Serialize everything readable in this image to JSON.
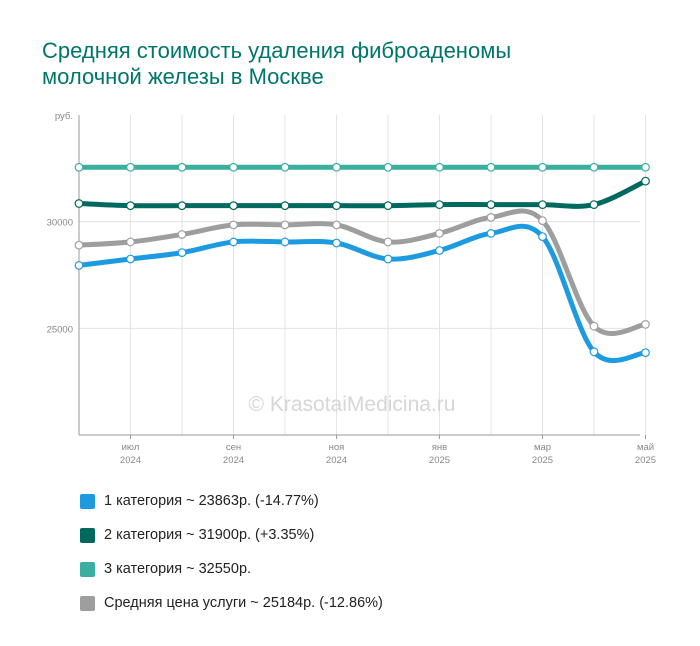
{
  "title": [
    "Средняя стоимость удаления фиброаденомы",
    "молочной железы в Москве"
  ],
  "watermark": "© KrasotaiMedicina.ru",
  "chart_data": {
    "type": "line",
    "ylabel": "руб.",
    "ylim": [
      20000,
      35000
    ],
    "yticks": [
      "30000",
      "25000"
    ],
    "ytick_values": [
      30000,
      25000
    ],
    "x_count": 12,
    "xticks": [
      {
        "i": 1,
        "month": "июл",
        "year": "2024"
      },
      {
        "i": 3,
        "month": "сен",
        "year": "2024"
      },
      {
        "i": 5,
        "month": "ноя",
        "year": "2024"
      },
      {
        "i": 7,
        "month": "янв",
        "year": "2025"
      },
      {
        "i": 9,
        "month": "мар",
        "year": "2025"
      },
      {
        "i": 11,
        "month": "май",
        "year": "2025"
      }
    ],
    "series": [
      {
        "color": "#00695f",
        "values": [
          30850,
          30750,
          30750,
          30750,
          30750,
          30750,
          30750,
          30800,
          30800,
          30800,
          30800,
          31900
        ]
      },
      {
        "color": "#3aafa0",
        "values": [
          32550,
          32550,
          32550,
          32550,
          32550,
          32550,
          32550,
          32550,
          32550,
          32550,
          32550,
          32550
        ]
      },
      {
        "color": "#9e9e9e",
        "values": [
          28900,
          29050,
          29400,
          29850,
          29850,
          29850,
          29050,
          29450,
          30200,
          30050,
          25100,
          25184
        ]
      },
      {
        "color": "#1e9be0",
        "values": [
          27950,
          28250,
          28550,
          29050,
          29050,
          29000,
          28250,
          28650,
          29450,
          29300,
          23900,
          23863
        ]
      }
    ]
  },
  "legend": [
    {
      "label": "1 категория ~ 23863р. (-14.77%)",
      "color": "#1e9be0"
    },
    {
      "label": "2 категория ~ 31900р. (+3.35%)",
      "color": "#00695f"
    },
    {
      "label": "3 категория ~ 32550р.",
      "color": "#3aafa0"
    },
    {
      "label": "Средняя цена услуги ~ 25184р. (-12.86%)",
      "color": "#9e9e9e"
    }
  ]
}
